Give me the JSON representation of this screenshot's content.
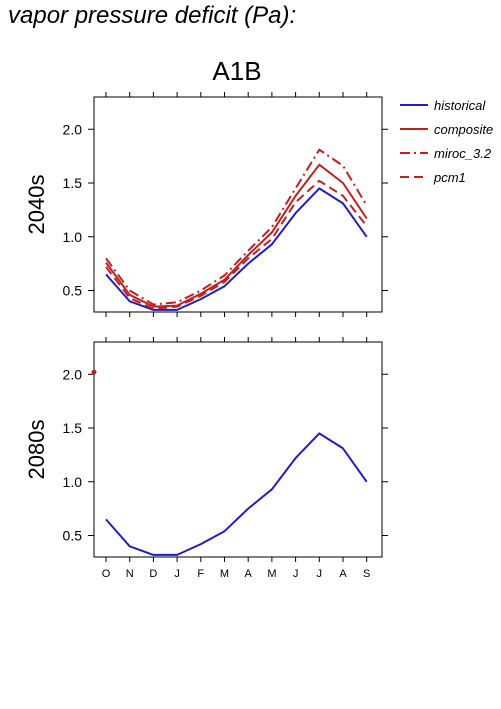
{
  "page_title": "vapor pressure deficit (Pa):",
  "chart_data": {
    "type": "line",
    "title": "A1B",
    "categories": [
      "O",
      "N",
      "D",
      "J",
      "F",
      "M",
      "A",
      "M",
      "J",
      "J",
      "A",
      "S"
    ],
    "ylim": [
      0.3,
      2.3
    ],
    "yticks": [
      "0.5",
      "1.0",
      "1.5",
      "2.0"
    ],
    "legend_position": "top-right",
    "panels": [
      {
        "label": "2040s",
        "series": [
          {
            "name": "historical",
            "color": "#1f1fbf",
            "dash": "solid",
            "values": [
              0.65,
              0.4,
              0.32,
              0.32,
              0.42,
              0.54,
              0.75,
              0.93,
              1.22,
              1.45,
              1.31,
              1.0
            ]
          },
          {
            "name": "composite",
            "color": "#c02020",
            "dash": "solid",
            "values": [
              0.76,
              0.46,
              0.35,
              0.36,
              0.47,
              0.6,
              0.83,
              1.04,
              1.38,
              1.67,
              1.5,
              1.17
            ]
          },
          {
            "name": "miroc_3.2",
            "color": "#c02020",
            "dash": "dashdot",
            "values": [
              0.8,
              0.5,
              0.37,
              0.39,
              0.5,
              0.64,
              0.87,
              1.09,
              1.45,
              1.81,
              1.66,
              1.29
            ]
          },
          {
            "name": "pcm1",
            "color": "#c02020",
            "dash": "dash",
            "values": [
              0.72,
              0.43,
              0.33,
              0.35,
              0.45,
              0.58,
              0.8,
              0.98,
              1.32,
              1.52,
              1.38,
              1.1
            ]
          }
        ]
      },
      {
        "label": "2080s",
        "series": [
          {
            "name": "historical",
            "color": "#1f1fbf",
            "dash": "solid",
            "values": [
              0.65,
              0.4,
              0.32,
              0.32,
              0.42,
              0.54,
              0.75,
              0.93,
              1.22,
              1.45,
              1.31,
              1.0
            ]
          }
        ],
        "marker": {
          "x_index": -0.5,
          "value": 2.02,
          "color": "#c02020"
        }
      }
    ]
  }
}
